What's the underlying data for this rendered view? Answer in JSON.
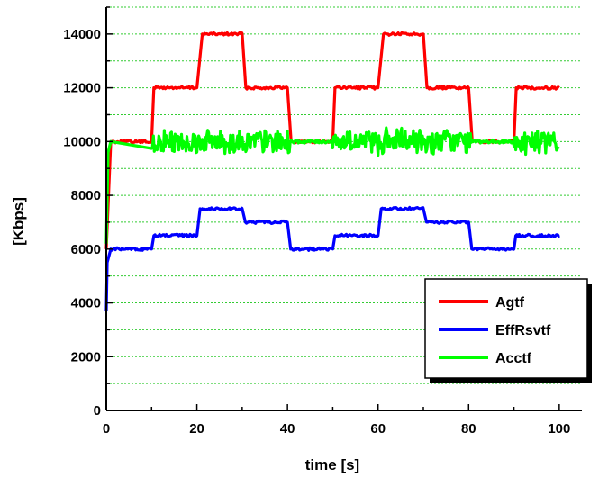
{
  "chart_data": {
    "type": "line",
    "xlabel": "time [s]",
    "ylabel": "[Kbps]",
    "xlim": [
      0,
      105
    ],
    "ylim": [
      0,
      15000
    ],
    "xticks": [
      0,
      20,
      40,
      60,
      80,
      100
    ],
    "yticks": [
      0,
      2000,
      4000,
      6000,
      8000,
      10000,
      12000,
      14000
    ],
    "grid": "horizontal dotted green",
    "legend_position": "bottom-right",
    "series": [
      {
        "name": "Agtf",
        "color": "#ff0000",
        "x": [
          0,
          1,
          10,
          10.5,
          20,
          21.2,
          30,
          30.8,
          40,
          40.8,
          50,
          50.5,
          60,
          61.2,
          70,
          70.8,
          80,
          80.8,
          90,
          90.5,
          100
        ],
        "y": [
          6000,
          10000,
          10000,
          12000,
          12000,
          14000,
          14000,
          12000,
          12000,
          10000,
          10000,
          12000,
          12000,
          14000,
          14000,
          12000,
          12000,
          10000,
          10000,
          12000,
          12000
        ]
      },
      {
        "name": "EffRsvtf",
        "color": "#0000ff",
        "x": [
          0,
          0.2,
          1,
          10,
          10.5,
          20,
          20.7,
          30,
          30.7,
          40,
          40.7,
          50,
          50.5,
          60,
          60.7,
          70,
          70.7,
          80,
          80.7,
          90,
          90.4,
          100
        ],
        "y": [
          3700,
          5500,
          6000,
          6000,
          6500,
          6500,
          7500,
          7500,
          7000,
          7000,
          6000,
          6000,
          6500,
          6500,
          7500,
          7500,
          7000,
          7000,
          6000,
          6000,
          6500,
          6500
        ]
      },
      {
        "name": "Acctf",
        "color": "#00ff00",
        "x": [
          0,
          0.4,
          1,
          10,
          20,
          30,
          40,
          50,
          60,
          70,
          80,
          90,
          100
        ],
        "y": [
          6200,
          9600,
          10000,
          10000,
          10000,
          10000,
          10000,
          10000,
          10000,
          10000,
          10000,
          10000,
          10000
        ]
      }
    ]
  }
}
